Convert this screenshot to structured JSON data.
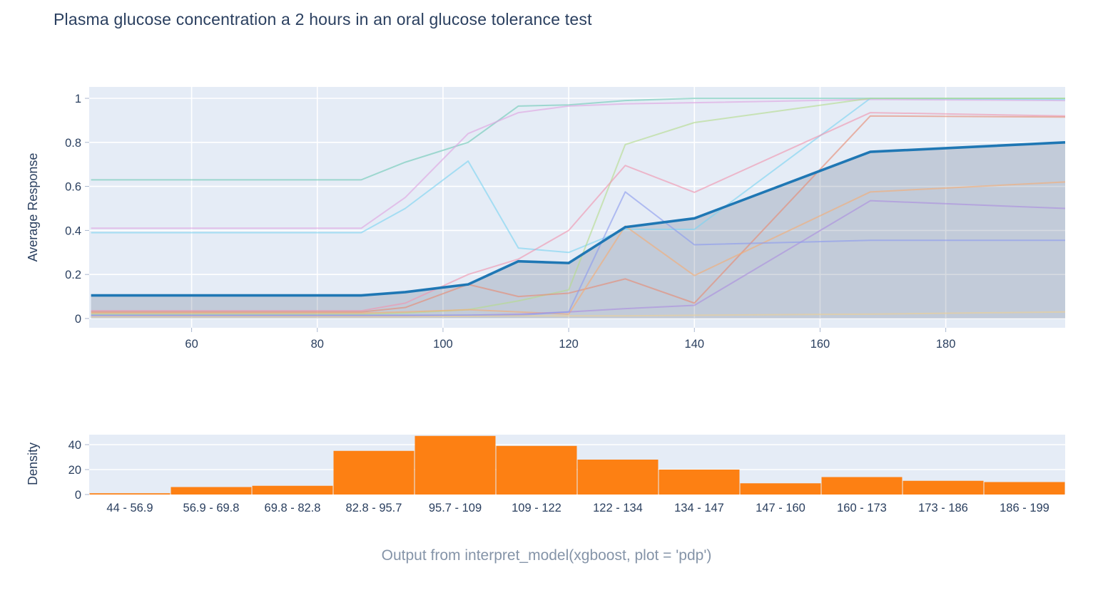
{
  "title": "Plasma glucose concentration a 2 hours in an oral glucose tolerance test",
  "caption": "Output from interpret_model(xgboost, plot = 'pdp')",
  "colors": {
    "title_text": "#2a3f5f",
    "tick_text": "#2a3f5f",
    "caption_text": "#8594a8",
    "plot_bg": "#e5ecf6",
    "grid": "#ffffff",
    "tick_mark": "#a8b6cf",
    "pdp_line": "#1f77b4",
    "pdp_fill": "rgba(42,63,95,0.19)",
    "bar": "#fd8013",
    "bar_gap": "#f3e2d0"
  },
  "chart_data": [
    {
      "type": "line",
      "ylabel": "Average Response",
      "xlabel": "",
      "xlim": [
        43.7,
        199
      ],
      "ylim": [
        0,
        1
      ],
      "xticks": [
        60,
        80,
        100,
        120,
        140,
        160,
        180
      ],
      "yticks": [
        0,
        0.2,
        0.4,
        0.6,
        0.8,
        1
      ],
      "grid": true,
      "legend": "none",
      "x": [
        44,
        87,
        94,
        104,
        112,
        120,
        129,
        140,
        168,
        199
      ],
      "pdp": {
        "name": "average-response-pdp",
        "color": "#1f77b4",
        "fill_to_zero": true,
        "values": [
          0.105,
          0.105,
          0.12,
          0.155,
          0.26,
          0.252,
          0.415,
          0.455,
          0.757,
          0.8
        ]
      },
      "series": [
        {
          "name": "ice-teal",
          "color": "#6fc9b7",
          "values": [
            0.63,
            0.63,
            0.71,
            0.8,
            0.965,
            0.97,
            0.99,
            1.0,
            1.0,
            1.0
          ]
        },
        {
          "name": "ice-plum",
          "color": "#dfa3e0",
          "values": [
            0.41,
            0.41,
            0.55,
            0.84,
            0.935,
            0.965,
            0.975,
            0.98,
            0.995,
            0.99
          ]
        },
        {
          "name": "ice-cyan",
          "color": "#7dd4f0",
          "values": [
            0.39,
            0.39,
            0.5,
            0.715,
            0.32,
            0.3,
            0.405,
            0.405,
            1.0,
            0.995
          ]
        },
        {
          "name": "ice-lightgreen",
          "color": "#b4dc8c",
          "values": [
            0.02,
            0.02,
            0.025,
            0.04,
            0.08,
            0.13,
            0.79,
            0.89,
            1.0,
            1.0
          ]
        },
        {
          "name": "ice-pink",
          "color": "#f095af",
          "values": [
            0.035,
            0.035,
            0.07,
            0.2,
            0.27,
            0.4,
            0.695,
            0.573,
            0.935,
            0.92
          ]
        },
        {
          "name": "ice-salmon",
          "color": "#e78a73",
          "values": [
            0.03,
            0.03,
            0.05,
            0.155,
            0.1,
            0.115,
            0.18,
            0.07,
            0.92,
            0.915
          ]
        },
        {
          "name": "ice-orange",
          "color": "#f4ad74",
          "values": [
            0.025,
            0.025,
            0.03,
            0.04,
            0.03,
            0.02,
            0.42,
            0.195,
            0.575,
            0.62
          ]
        },
        {
          "name": "ice-purple",
          "color": "#ab8ede",
          "values": [
            0.012,
            0.012,
            0.013,
            0.015,
            0.02,
            0.03,
            0.045,
            0.06,
            0.535,
            0.5
          ]
        },
        {
          "name": "ice-periwinkle",
          "color": "#8d9bee",
          "values": [
            0.015,
            0.015,
            0.015,
            0.015,
            0.015,
            0.03,
            0.575,
            0.335,
            0.355,
            0.355
          ]
        },
        {
          "name": "ice-yellow",
          "color": "#ecd096",
          "values": [
            0.008,
            0.008,
            0.008,
            0.01,
            0.012,
            0.012,
            0.012,
            0.015,
            0.02,
            0.03
          ]
        }
      ]
    },
    {
      "type": "bar",
      "ylabel": "Density",
      "xlabel": "",
      "ylim": [
        0,
        48
      ],
      "yticks": [
        0,
        20,
        40
      ],
      "grid": true,
      "legend": "none",
      "categories": [
        "44 - 56.9",
        "56.9 - 69.8",
        "69.8 - 82.8",
        "82.8 - 95.7",
        "95.7 - 109",
        "109 - 122",
        "122 - 134",
        "134 - 147",
        "147 - 160",
        "160 - 173",
        "173 - 186",
        "186 - 199"
      ],
      "values": [
        1,
        6,
        7,
        35,
        47,
        39,
        28,
        20,
        9,
        14,
        11,
        10
      ]
    }
  ]
}
